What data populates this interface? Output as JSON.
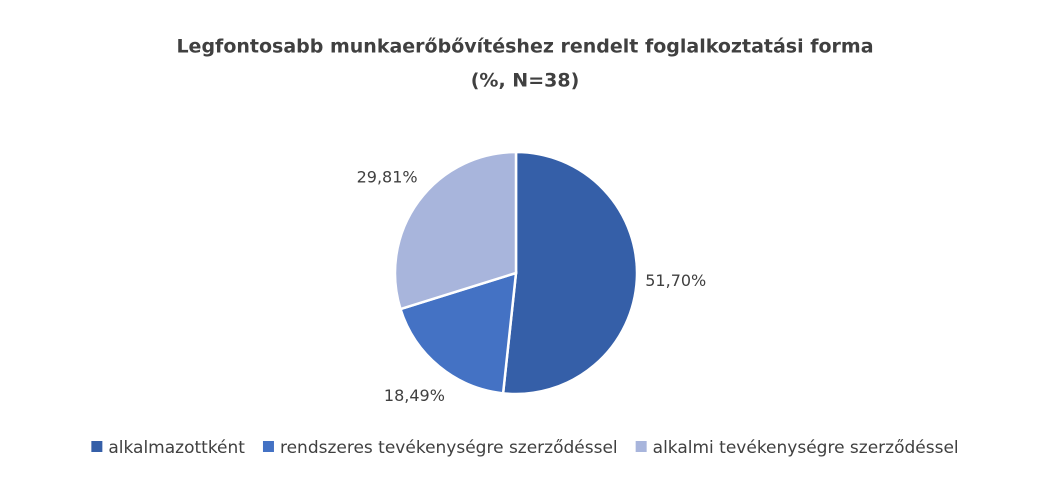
{
  "chart_data": {
    "type": "pie",
    "title": "Legfontosabb munkaerőbővítéshez rendelt  foglalkoztatási forma",
    "subtitle": "(%, N=38)",
    "categories": [
      "alkalmazottként",
      "rendszeres tevékenységre szerződéssel",
      "alkalmi tevékenységre szerződéssel"
    ],
    "values": [
      51.7,
      18.49,
      29.81
    ],
    "value_labels": [
      "51,70%",
      "18,49%",
      "29,81%"
    ],
    "colors": [
      "#355fa8",
      "#4472c4",
      "#a8b5dc"
    ],
    "legend": "bottom"
  }
}
